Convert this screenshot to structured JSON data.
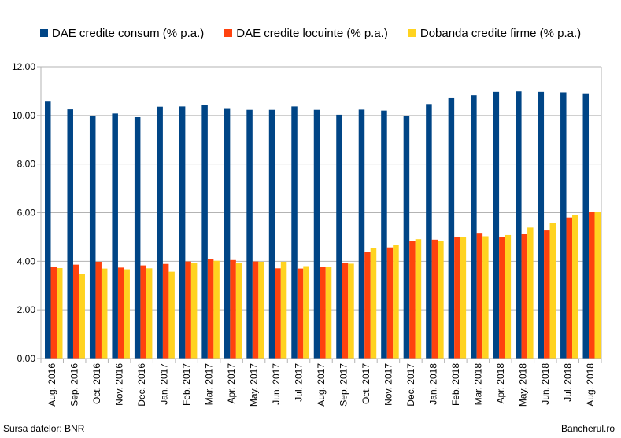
{
  "chart_data": {
    "type": "bar",
    "title": "",
    "xlabel": "",
    "ylabel": "",
    "ylim": [
      0,
      12
    ],
    "yticks": [
      "0.00",
      "2.00",
      "4.00",
      "6.00",
      "8.00",
      "10.00",
      "12.00"
    ],
    "grid": true,
    "legend_position": "top",
    "categories": [
      "Aug. 2016",
      "Sep. 2016",
      "Oct. 2016",
      "Nov. 2016",
      "Dec. 2016",
      "Jan. 2017",
      "Feb. 2017",
      "Mar. 2017",
      "Apr. 2017",
      "May. 2017",
      "Jun. 2017",
      "Jul. 2017",
      "Aug. 2017",
      "Sep. 2017",
      "Oct. 2017",
      "Nov. 2017",
      "Dec. 2017",
      "Jan. 2018",
      "Feb. 2018",
      "Mar. 2018",
      "Apr. 2018",
      "May. 2018",
      "Jun. 2018",
      "Jul. 2018",
      "Aug. 2018"
    ],
    "series": [
      {
        "name": "DAE credite consum (% p.a.)",
        "color": "#004586",
        "values": [
          10.57,
          10.25,
          9.98,
          10.08,
          9.93,
          10.36,
          10.37,
          10.42,
          10.3,
          10.23,
          10.23,
          10.37,
          10.23,
          10.03,
          10.24,
          10.2,
          9.98,
          10.47,
          10.74,
          10.83,
          10.97,
          10.99,
          10.97,
          10.95,
          10.91
        ]
      },
      {
        "name": "DAE credite locuinte (% p.a.)",
        "color": "#ff420e",
        "values": [
          3.76,
          3.86,
          3.98,
          3.74,
          3.83,
          3.89,
          3.99,
          4.1,
          4.05,
          3.99,
          3.71,
          3.7,
          3.77,
          3.94,
          4.38,
          4.57,
          4.82,
          4.89,
          5.0,
          5.17,
          5.0,
          5.13,
          5.27,
          5.8,
          6.04
        ]
      },
      {
        "name": "Dobanda credite firme (% p.a.)",
        "color": "#ffd320",
        "values": [
          3.72,
          3.48,
          3.7,
          3.67,
          3.71,
          3.57,
          3.92,
          4.02,
          3.93,
          3.98,
          3.98,
          3.8,
          3.76,
          3.9,
          4.56,
          4.69,
          4.91,
          4.85,
          4.99,
          5.03,
          5.08,
          5.39,
          5.59,
          5.9,
          6.03
        ]
      }
    ]
  },
  "footer": {
    "source": "Sursa datelor: BNR",
    "site": "Bancherul.ro"
  }
}
